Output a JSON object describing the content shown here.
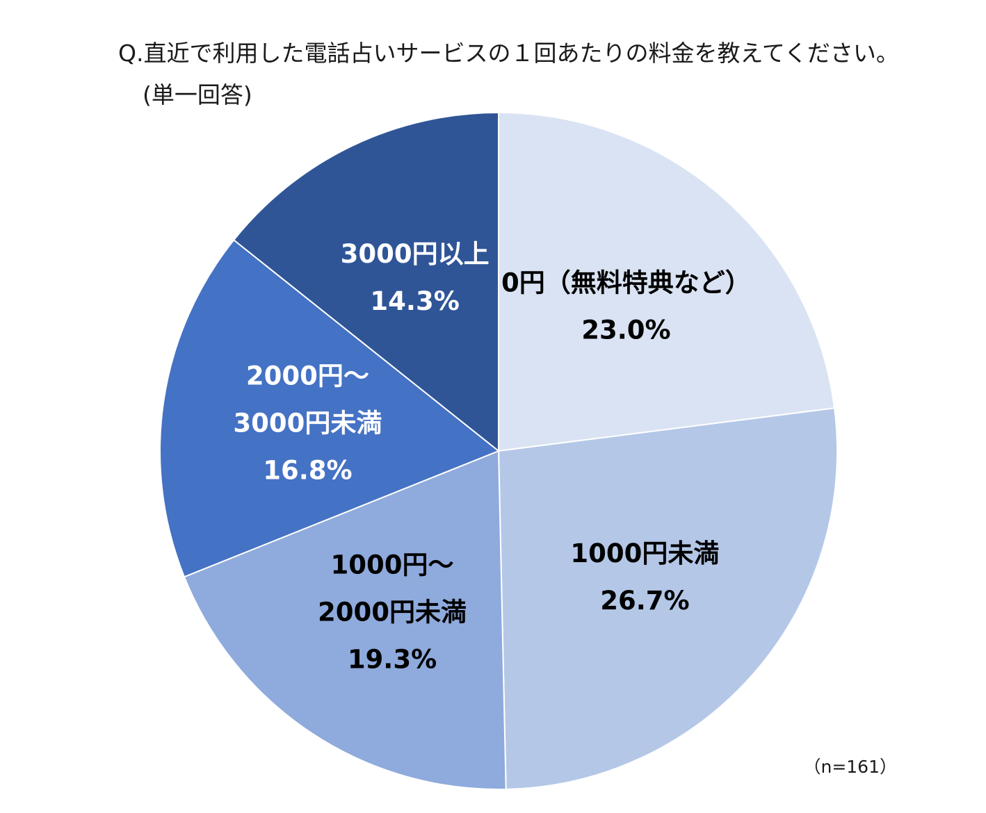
{
  "chart_data": {
    "type": "pie",
    "title": "Q.直近で利用した電話占いサービスの１回あたりの料金を教えてください。",
    "subtitle": "(単一回答)",
    "note": "（n=161）",
    "start_angle_deg": 0,
    "direction": "clockwise",
    "slices": [
      {
        "label_lines": [
          "0円（無料特典など）"
        ],
        "value": 23.0,
        "value_label": "23.0%",
        "color": "#dae3f3",
        "text_color": "#000000"
      },
      {
        "label_lines": [
          "1000円未満"
        ],
        "value": 26.7,
        "value_label": "26.7%",
        "color": "#b4c7e7",
        "text_color": "#000000"
      },
      {
        "label_lines": [
          "1000円～",
          "2000円未満"
        ],
        "value": 19.3,
        "value_label": "19.3%",
        "color": "#8faadc",
        "text_color": "#000000"
      },
      {
        "label_lines": [
          "2000円～",
          "3000円未満"
        ],
        "value": 16.8,
        "value_label": "16.8%",
        "color": "#4472c4",
        "text_color": "#ffffff"
      },
      {
        "label_lines": [
          "3000円以上"
        ],
        "value": 14.3,
        "value_label": "14.3%",
        "color": "#2f5597",
        "text_color": "#ffffff"
      }
    ]
  }
}
